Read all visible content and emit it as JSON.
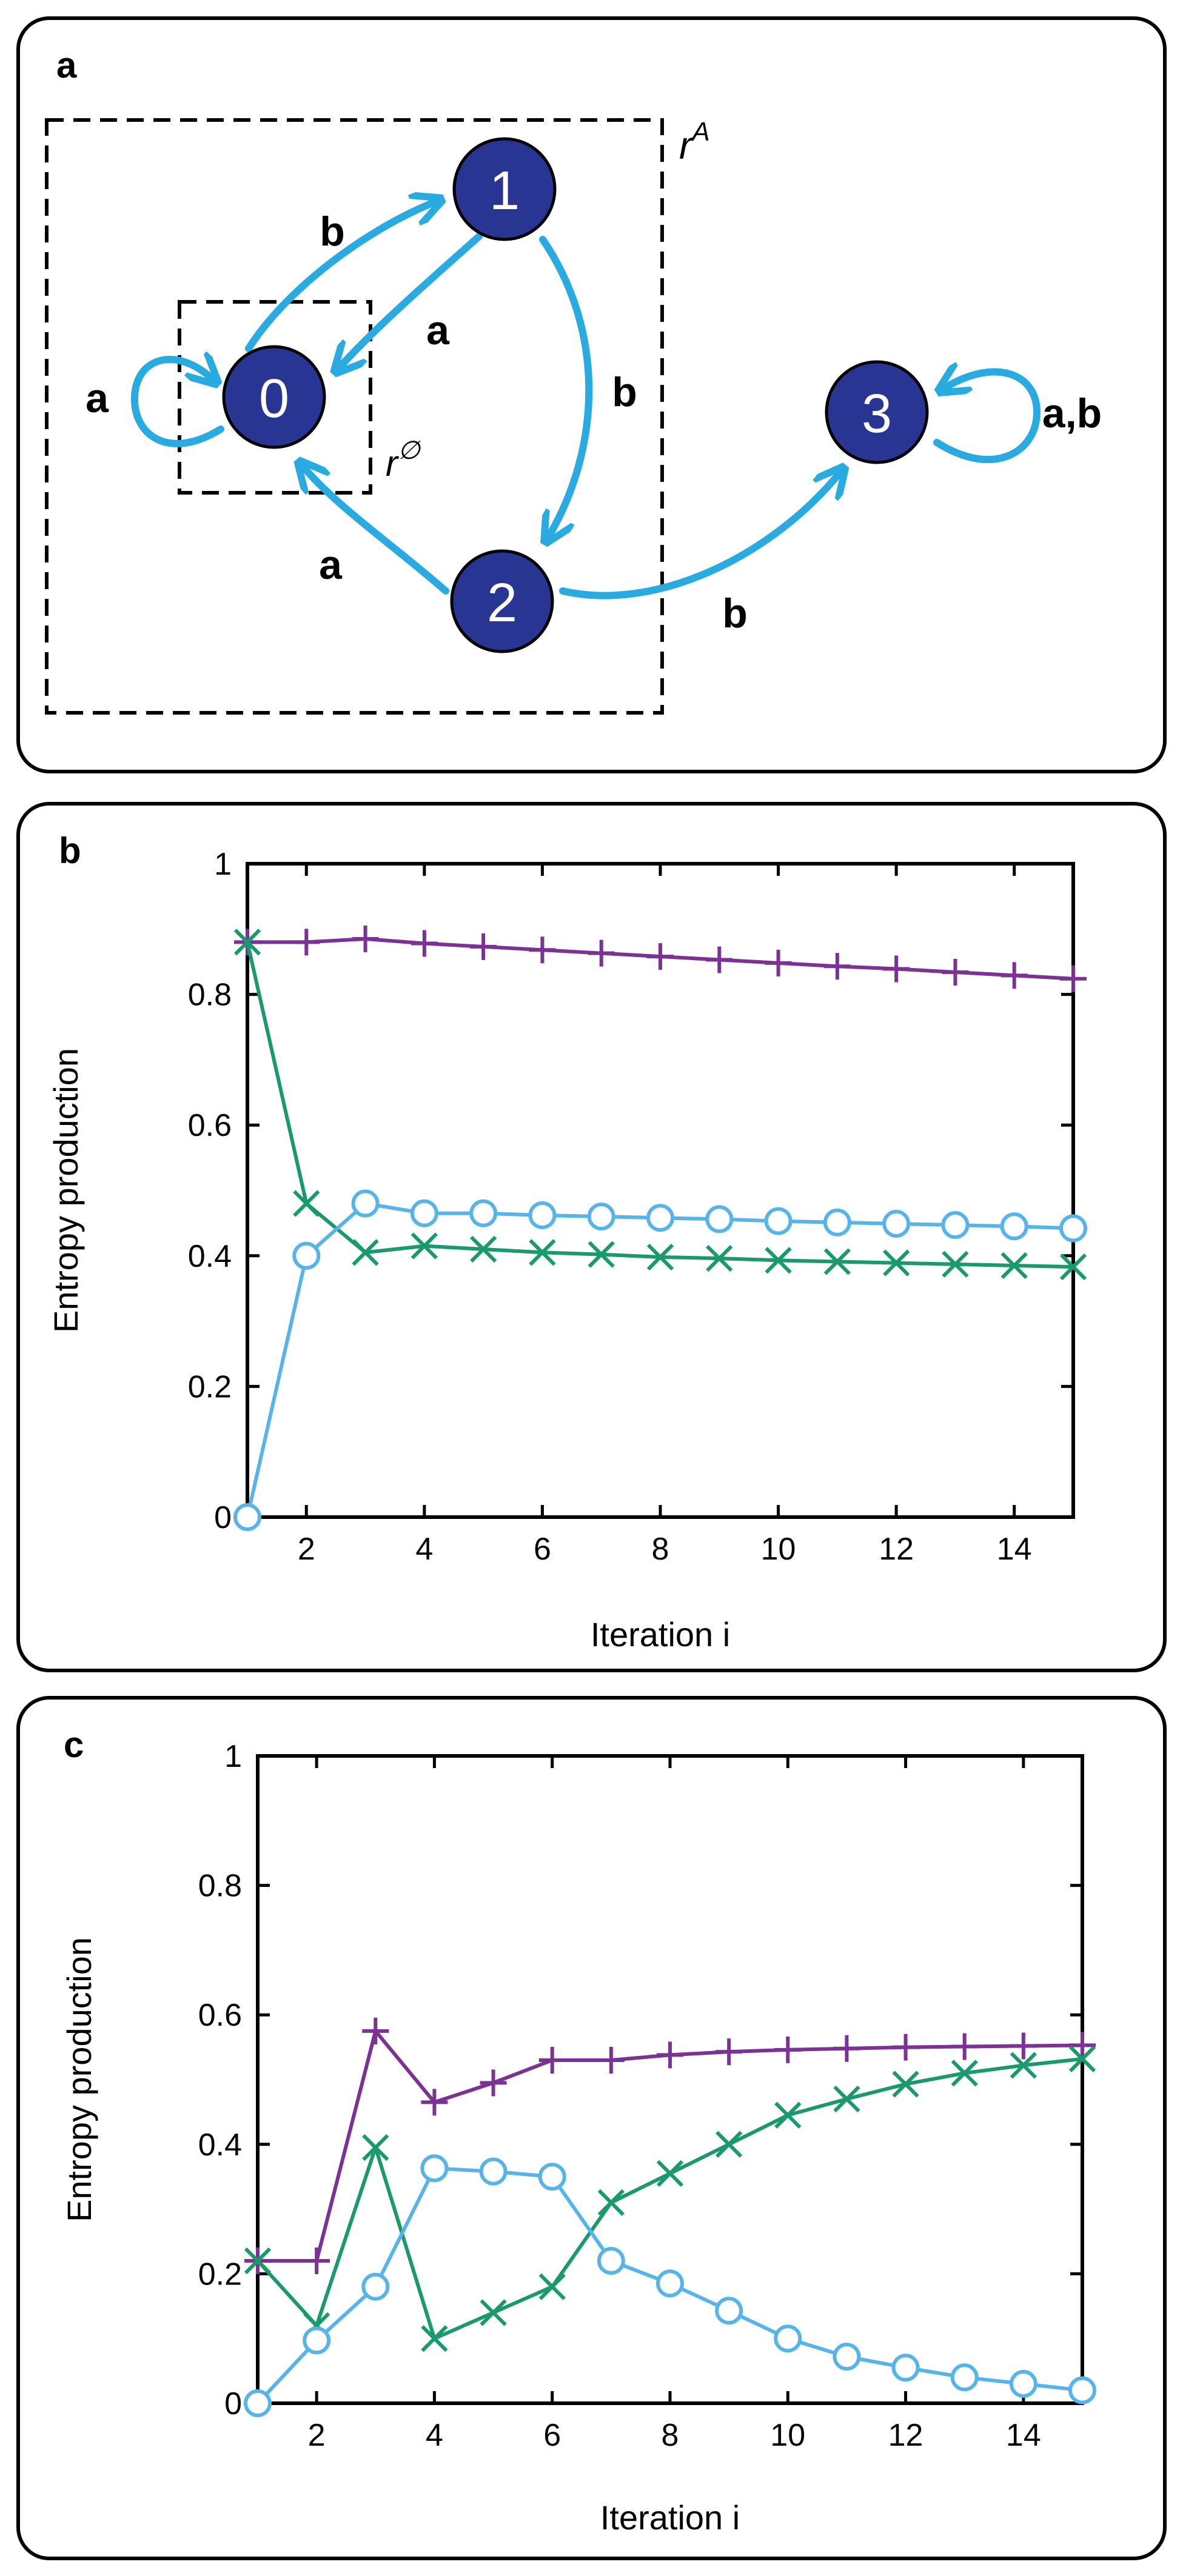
{
  "panels": {
    "a": {
      "label": "a"
    },
    "b": {
      "label": "b"
    },
    "c": {
      "label": "c"
    }
  },
  "diagram": {
    "nodes": [
      "0",
      "1",
      "2",
      "3"
    ],
    "edge_labels": {
      "self_0": "a",
      "e0_1": "b",
      "e1_0": "a",
      "e1_2": "b",
      "e2_0": "a",
      "e2_3": "b",
      "self_3": "a,b"
    },
    "region_labels": {
      "outer": "A",
      "inner": "∅"
    },
    "colors": {
      "node_fill": "#283593",
      "edge": "#29abe2",
      "box": "#000000"
    }
  },
  "chart_data": [
    {
      "type": "line",
      "panel": "b",
      "xlabel": "Iteration i",
      "ylabel": "Entropy production",
      "xlim": [
        1,
        15
      ],
      "ylim": [
        0,
        1
      ],
      "xticks": [
        2,
        4,
        6,
        8,
        10,
        12,
        14
      ],
      "yticks": [
        0,
        0.2,
        0.4,
        0.6,
        0.8,
        1
      ],
      "x": [
        1,
        2,
        3,
        4,
        5,
        6,
        7,
        8,
        9,
        10,
        11,
        12,
        13,
        14,
        15
      ],
      "series": [
        {
          "marker": "plus",
          "color": "#7b3294",
          "values": [
            0.88,
            0.88,
            0.885,
            0.878,
            0.873,
            0.868,
            0.863,
            0.858,
            0.853,
            0.848,
            0.843,
            0.839,
            0.834,
            0.829,
            0.824
          ]
        },
        {
          "marker": "cross",
          "color": "#1a9a6c",
          "values": [
            0.88,
            0.48,
            0.405,
            0.415,
            0.41,
            0.405,
            0.402,
            0.398,
            0.396,
            0.393,
            0.391,
            0.389,
            0.387,
            0.385,
            0.383
          ]
        },
        {
          "marker": "circle",
          "color": "#56b4e9",
          "values": [
            0.0,
            0.4,
            0.48,
            0.465,
            0.465,
            0.462,
            0.46,
            0.458,
            0.456,
            0.453,
            0.451,
            0.449,
            0.447,
            0.445,
            0.442
          ]
        }
      ]
    },
    {
      "type": "line",
      "panel": "c",
      "xlabel": "Iteration i",
      "ylabel": "Entropy production",
      "xlim": [
        1,
        15
      ],
      "ylim": [
        0,
        1
      ],
      "xticks": [
        2,
        4,
        6,
        8,
        10,
        12,
        14
      ],
      "yticks": [
        0,
        0.2,
        0.4,
        0.6,
        0.8,
        1
      ],
      "x": [
        1,
        2,
        3,
        4,
        5,
        6,
        7,
        8,
        9,
        10,
        11,
        12,
        13,
        14,
        15
      ],
      "series": [
        {
          "marker": "plus",
          "color": "#7b3294",
          "values": [
            0.22,
            0.22,
            0.575,
            0.465,
            0.495,
            0.53,
            0.53,
            0.538,
            0.543,
            0.546,
            0.548,
            0.55,
            0.551,
            0.552,
            0.553
          ]
        },
        {
          "marker": "cross",
          "color": "#1a9a6c",
          "values": [
            0.22,
            0.12,
            0.395,
            0.1,
            0.14,
            0.18,
            0.31,
            0.355,
            0.4,
            0.445,
            0.47,
            0.493,
            0.51,
            0.522,
            0.532
          ]
        },
        {
          "marker": "circle",
          "color": "#56b4e9",
          "values": [
            0.0,
            0.097,
            0.18,
            0.363,
            0.358,
            0.35,
            0.22,
            0.185,
            0.143,
            0.1,
            0.072,
            0.055,
            0.04,
            0.03,
            0.02
          ]
        }
      ]
    }
  ]
}
